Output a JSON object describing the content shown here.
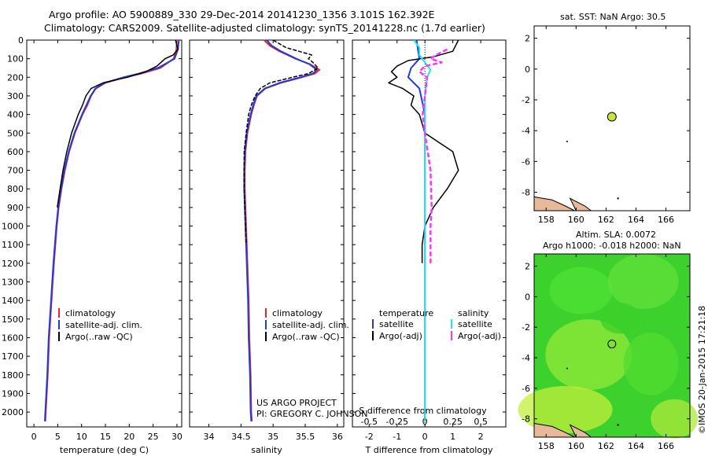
{
  "header": {
    "line1": "Argo profile: AO 5900889_330 29-Dec-2014 20141230_1356 3.101S 162.392E",
    "line2": "Climatology: CARS2009. Satellite-adjusted climatology: synTS_20141228.nc (1.7d earlier)"
  },
  "map1": {
    "title": "sat. SST: NaN Argo: 30.5"
  },
  "map2": {
    "title1": "Altim. SLA: 0.0072",
    "title2": "Argo h1000: -0.018 h2000: NaN"
  },
  "credit": "©IMOS 20-Jan-2015 17:21:18",
  "project": {
    "line1": "US ARGO PROJECT",
    "line2": "PI: GREGORY C. JOHNSON"
  },
  "legend_profiles": [
    "climatology",
    "satellite-adj. clim.",
    "Argo(..raw -QC)"
  ],
  "legend_diff": {
    "left_title": "temperature",
    "right_title": "salinity",
    "left": [
      "satellite",
      "Argo(-adj)"
    ],
    "right": [
      "satellite",
      "Argo(-adj)"
    ]
  },
  "colors": {
    "climatology": "#e8261f",
    "satellite": "#1f3be0",
    "argo": "#000000",
    "sal_sat": "#22e6e6",
    "sal_argo": "#ff33ff",
    "land": "#e8b89a",
    "float": "#c6e63c"
  },
  "chart_data": [
    {
      "type": "line",
      "xlabel": "temperature (deg C)",
      "xlim": [
        -1.5,
        31
      ],
      "ylim": [
        2080,
        0
      ],
      "xticks": [
        0,
        5,
        10,
        15,
        20,
        25,
        30
      ],
      "yticks": [
        0,
        100,
        200,
        300,
        400,
        500,
        600,
        700,
        800,
        900,
        1000,
        1100,
        1200,
        1300,
        1400,
        1500,
        1600,
        1700,
        1800,
        1900,
        2000
      ],
      "series": [
        {
          "name": "climatology",
          "depth": [
            0,
            50,
            100,
            150,
            180,
            200,
            230,
            260,
            300,
            350,
            400,
            500,
            600,
            700,
            800,
            900,
            1000,
            1200,
            1400,
            1600,
            1800,
            2000,
            2050
          ],
          "values": [
            30.0,
            29.9,
            29.3,
            26.5,
            22.5,
            19.0,
            15.0,
            13.0,
            12.0,
            11.2,
            10.2,
            8.6,
            7.4,
            6.5,
            5.8,
            5.2,
            4.8,
            4.2,
            3.7,
            3.2,
            2.9,
            2.5,
            2.4
          ]
        },
        {
          "name": "satellite-adj. clim.",
          "depth": [
            0,
            50,
            100,
            150,
            180,
            200,
            230,
            260,
            300,
            350,
            400,
            500,
            600,
            700,
            800,
            900,
            1000,
            1200,
            1400,
            1600,
            1800,
            2000,
            2050
          ],
          "values": [
            30.4,
            30.2,
            29.5,
            26.0,
            22.0,
            18.8,
            14.8,
            12.9,
            11.9,
            11.0,
            10.1,
            8.5,
            7.3,
            6.4,
            5.7,
            5.1,
            4.7,
            4.1,
            3.6,
            3.1,
            2.8,
            2.4,
            2.3
          ]
        },
        {
          "name": "Argo(..raw -QC)",
          "depth": [
            0,
            20,
            50,
            80,
            100,
            140,
            170,
            200,
            230,
            260,
            300,
            350,
            400,
            500,
            600,
            700,
            800,
            900
          ],
          "values": [
            29.7,
            29.9,
            30.2,
            29.2,
            27.5,
            25.8,
            23.5,
            19.6,
            14.5,
            12.0,
            10.9,
            10.2,
            9.3,
            7.9,
            6.9,
            6.1,
            5.5,
            4.9
          ]
        }
      ]
    },
    {
      "type": "line",
      "xlabel": "salinity",
      "xlim": [
        33.7,
        36.1
      ],
      "ylim": [
        2080,
        0
      ],
      "xticks": [
        34,
        34.5,
        35,
        35.5,
        36
      ],
      "series": [
        {
          "name": "climatology",
          "depth": [
            0,
            30,
            60,
            100,
            130,
            160,
            180,
            200,
            230,
            260,
            300,
            350,
            400,
            500,
            600,
            700,
            800,
            900,
            1000,
            1200,
            1400,
            1600,
            1800,
            2000,
            2050
          ],
          "values": [
            34.86,
            34.95,
            35.1,
            35.35,
            35.58,
            35.72,
            35.65,
            35.45,
            35.12,
            34.88,
            34.75,
            34.7,
            34.66,
            34.6,
            34.57,
            34.56,
            34.56,
            34.57,
            34.58,
            34.6,
            34.62,
            34.63,
            34.65,
            34.66,
            34.67
          ]
        },
        {
          "name": "satellite-adj. clim.",
          "depth": [
            0,
            30,
            60,
            100,
            130,
            160,
            180,
            200,
            230,
            260,
            300,
            350,
            400,
            500,
            600,
            700,
            800,
            900,
            1000,
            1200,
            1400,
            1600,
            1800,
            2000,
            2050
          ],
          "values": [
            34.9,
            34.98,
            35.12,
            35.36,
            35.57,
            35.68,
            35.62,
            35.42,
            35.1,
            34.87,
            34.74,
            34.69,
            34.65,
            34.59,
            34.56,
            34.55,
            34.55,
            34.56,
            34.57,
            34.59,
            34.61,
            34.62,
            34.64,
            34.65,
            34.66
          ]
        },
        {
          "name": "Argo(..raw -QC)",
          "depth": [
            0,
            40,
            80,
            100,
            120,
            150,
            180,
            200,
            230,
            260,
            300,
            350,
            400,
            500,
            600,
            700,
            800,
            900,
            1000,
            1100
          ],
          "values": [
            35.0,
            35.2,
            35.6,
            35.55,
            35.62,
            35.7,
            35.55,
            35.3,
            34.95,
            34.8,
            34.72,
            34.66,
            34.62,
            34.58,
            34.55,
            34.55,
            34.55,
            34.56,
            34.57,
            34.58
          ]
        }
      ]
    },
    {
      "type": "line",
      "xlabel": "T difference from climatology",
      "xlabel_top": "S difference from climatology",
      "xlim": [
        -2.6,
        2.9
      ],
      "ylim": [
        2080,
        0
      ],
      "xticks": [
        -2,
        -1,
        0,
        1,
        2
      ],
      "xticks_top": [
        -0.5,
        -0.25,
        0,
        0.25,
        0.5
      ],
      "series": [
        {
          "name": "temperature satellite",
          "depth": [
            0,
            100,
            150,
            200,
            260,
            400,
            1000,
            2050
          ],
          "values": [
            -0.3,
            -0.2,
            -0.5,
            -0.6,
            -0.2,
            0,
            0,
            0
          ]
        },
        {
          "name": "temperature Argo(-adj)",
          "depth": [
            0,
            60,
            90,
            110,
            140,
            170,
            200,
            230,
            260,
            300,
            350,
            400,
            500,
            550,
            600,
            700,
            800,
            900,
            1000,
            1100,
            1200
          ],
          "values": [
            1.2,
            1.0,
            0.3,
            -0.6,
            -1.0,
            -1.2,
            -1.0,
            -1.3,
            -0.8,
            -0.4,
            -0.5,
            -0.2,
            0,
            0.5,
            1.0,
            1.2,
            0.8,
            0.3,
            0,
            -0.1,
            -0.1
          ]
        },
        {
          "name": "salinity satellite",
          "depth": [
            0,
            40,
            80,
            120,
            160,
            200,
            300,
            500,
            1000,
            2050
          ],
          "values": [
            -0.1,
            -0.05,
            -0.05,
            0.0,
            0.05,
            0.02,
            0,
            0,
            0,
            0
          ]
        },
        {
          "name": "salinity Argo(-adj)",
          "depth": [
            50,
            80,
            100,
            120,
            140,
            170,
            200,
            300,
            400,
            500,
            700,
            900,
            1000,
            1200
          ],
          "values": [
            0.2,
            0.1,
            0.05,
            0.15,
            0.0,
            -0.05,
            0.02,
            0,
            -0.02,
            0,
            0.05,
            0.06,
            0.05,
            0.05
          ]
        }
      ]
    },
    {
      "type": "scatter",
      "title": "sat. SST: NaN Argo: 30.5",
      "xlim": [
        157.2,
        167.6
      ],
      "ylim": [
        -9.2,
        2.8
      ],
      "xticks": [
        158,
        160,
        162,
        164,
        166
      ],
      "yticks": [
        -8,
        -6,
        -4,
        -2,
        0,
        2
      ],
      "points": [
        {
          "lon": 162.39,
          "lat": -3.1
        }
      ]
    },
    {
      "type": "heatmap",
      "title": "Altim. SLA: 0.0072",
      "xlim": [
        157.2,
        167.6
      ],
      "ylim": [
        -9.2,
        2.8
      ],
      "xticks": [
        158,
        160,
        162,
        164,
        166
      ],
      "yticks": [
        -8,
        -6,
        -4,
        -2,
        0,
        2
      ],
      "points": [
        {
          "lon": 162.39,
          "lat": -3.1
        }
      ]
    }
  ]
}
